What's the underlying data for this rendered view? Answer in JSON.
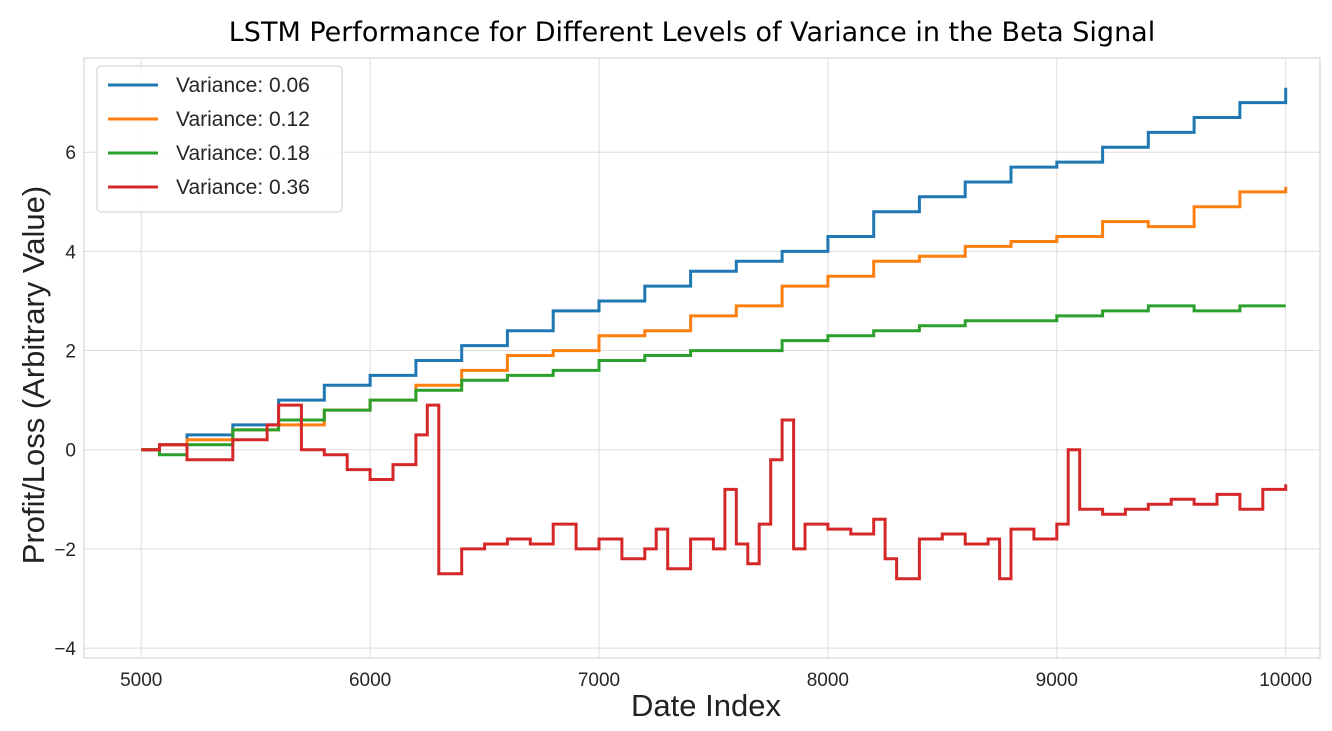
{
  "chart_data": {
    "type": "line",
    "title": "LSTM Performance for Different Levels of Variance in the Beta Signal",
    "xlabel": "Date Index",
    "ylabel": "Profit/Loss (Arbitrary Value)",
    "xlim": [
      4750,
      10150
    ],
    "ylim": [
      -4.2,
      7.9
    ],
    "x_ticks": [
      5000,
      6000,
      7000,
      8000,
      9000,
      10000
    ],
    "y_ticks": [
      -4,
      -2,
      0,
      2,
      4,
      6
    ],
    "x_tick_labels": [
      "5000",
      "6000",
      "7000",
      "8000",
      "9000",
      "10000"
    ],
    "y_tick_labels": [
      "−4",
      "−2",
      "0",
      "2",
      "4",
      "6"
    ],
    "grid": true,
    "legend_position": "top-left",
    "step": true,
    "series": [
      {
        "name": "Variance: 0.06",
        "color": "#1f77b4",
        "x": [
          5000,
          5080,
          5200,
          5400,
          5600,
          5800,
          6000,
          6200,
          6400,
          6600,
          6800,
          7000,
          7200,
          7400,
          7600,
          7800,
          8000,
          8200,
          8400,
          8600,
          8800,
          9000,
          9200,
          9400,
          9600,
          9800,
          10000
        ],
        "y": [
          0.0,
          0.1,
          0.3,
          0.5,
          1.0,
          1.3,
          1.5,
          1.8,
          2.1,
          2.4,
          2.8,
          3.0,
          3.3,
          3.6,
          3.8,
          4.0,
          4.3,
          4.8,
          5.1,
          5.4,
          5.7,
          5.8,
          6.1,
          6.4,
          6.7,
          7.0,
          7.3
        ]
      },
      {
        "name": "Variance: 0.12",
        "color": "#ff7f0e",
        "x": [
          5000,
          5080,
          5200,
          5400,
          5600,
          5800,
          6000,
          6200,
          6400,
          6600,
          6800,
          7000,
          7200,
          7400,
          7600,
          7800,
          8000,
          8200,
          8400,
          8600,
          8800,
          9000,
          9200,
          9400,
          9600,
          9800,
          10000
        ],
        "y": [
          0.0,
          0.1,
          0.2,
          0.4,
          0.5,
          0.8,
          1.0,
          1.3,
          1.6,
          1.9,
          2.0,
          2.3,
          2.4,
          2.7,
          2.9,
          3.3,
          3.5,
          3.8,
          3.9,
          4.1,
          4.2,
          4.3,
          4.6,
          4.5,
          4.9,
          5.2,
          5.3
        ]
      },
      {
        "name": "Variance: 0.18",
        "color": "#2ca02c",
        "x": [
          5000,
          5080,
          5200,
          5400,
          5600,
          5800,
          6000,
          6200,
          6400,
          6600,
          6800,
          7000,
          7200,
          7400,
          7600,
          7800,
          8000,
          8200,
          8400,
          8600,
          8800,
          9000,
          9200,
          9400,
          9600,
          9800,
          10000
        ],
        "y": [
          0.0,
          -0.1,
          0.1,
          0.4,
          0.6,
          0.8,
          1.0,
          1.2,
          1.4,
          1.5,
          1.6,
          1.8,
          1.9,
          2.0,
          2.0,
          2.2,
          2.3,
          2.4,
          2.5,
          2.6,
          2.6,
          2.7,
          2.8,
          2.9,
          2.8,
          2.9,
          2.9
        ]
      },
      {
        "name": "Variance: 0.36",
        "color": "#d62728",
        "x": [
          5000,
          5080,
          5200,
          5400,
          5550,
          5600,
          5700,
          5800,
          5900,
          6000,
          6100,
          6200,
          6250,
          6300,
          6400,
          6500,
          6600,
          6700,
          6800,
          6900,
          7000,
          7100,
          7200,
          7250,
          7300,
          7400,
          7500,
          7550,
          7600,
          7650,
          7700,
          7750,
          7800,
          7850,
          7900,
          8000,
          8100,
          8200,
          8250,
          8300,
          8400,
          8500,
          8600,
          8700,
          8750,
          8800,
          8900,
          9000,
          9050,
          9100,
          9200,
          9300,
          9400,
          9500,
          9600,
          9700,
          9800,
          9900,
          10000
        ],
        "y": [
          0.0,
          0.1,
          -0.2,
          0.2,
          0.5,
          0.9,
          0.0,
          -0.1,
          -0.4,
          -0.6,
          -0.3,
          0.3,
          0.9,
          -2.5,
          -2.0,
          -1.9,
          -1.8,
          -1.9,
          -1.5,
          -2.0,
          -1.8,
          -2.2,
          -2.0,
          -1.6,
          -2.4,
          -1.8,
          -2.0,
          -0.8,
          -1.9,
          -2.3,
          -1.5,
          -0.2,
          0.6,
          -2.0,
          -1.5,
          -1.6,
          -1.7,
          -1.4,
          -2.2,
          -2.6,
          -1.8,
          -1.7,
          -1.9,
          -1.8,
          -2.6,
          -1.6,
          -1.8,
          -1.5,
          0.0,
          -1.2,
          -1.3,
          -1.2,
          -1.1,
          -1.0,
          -1.1,
          -0.9,
          -1.2,
          -0.8,
          -0.7
        ]
      }
    ]
  }
}
